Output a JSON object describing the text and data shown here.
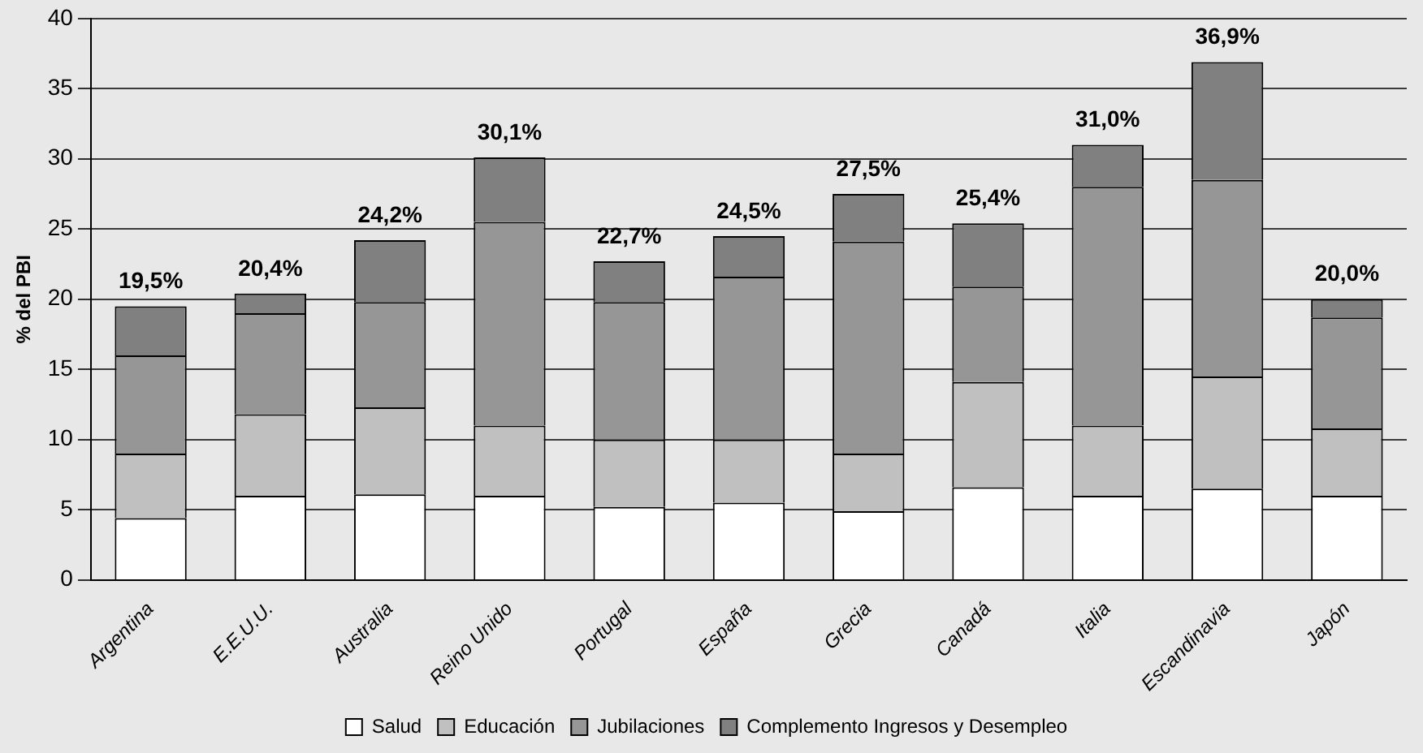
{
  "chart_data": {
    "type": "bar",
    "stacked": true,
    "ylabel": "% del PBI",
    "categories": [
      "Argentina",
      "E.E.U.U.",
      "Australia",
      "Reino Unido",
      "Portugal",
      "España",
      "Grecia",
      "Canadá",
      "Italia",
      "Escandinavia",
      "Japón"
    ],
    "series": [
      {
        "name": "Salud",
        "color": "#ffffff",
        "values": [
          4.4,
          6.0,
          6.1,
          6.0,
          5.2,
          5.5,
          4.9,
          6.6,
          6.0,
          6.5,
          6.0
        ]
      },
      {
        "name": "Educación",
        "color": "#c0c0c0",
        "values": [
          4.6,
          5.8,
          6.2,
          5.0,
          4.8,
          4.5,
          4.1,
          7.5,
          5.0,
          8.0,
          4.8
        ]
      },
      {
        "name": "Jubilaciones",
        "color": "#969696",
        "values": [
          7.0,
          7.2,
          7.5,
          14.5,
          9.8,
          11.6,
          15.1,
          6.8,
          17.0,
          14.0,
          7.9
        ]
      },
      {
        "name": "Complemento Ingresos y Desempleo",
        "color": "#808080",
        "values": [
          3.5,
          1.4,
          4.4,
          4.6,
          2.9,
          2.9,
          3.4,
          4.5,
          3.0,
          8.4,
          1.3
        ]
      }
    ],
    "totals": [
      "19,5%",
      "20,4%",
      "24,2%",
      "30,1%",
      "22,7%",
      "24,5%",
      "27,5%",
      "25,4%",
      "31,0%",
      "36,9%",
      "20,0%"
    ],
    "ylim": [
      0,
      40
    ],
    "yticks": [
      0,
      5,
      10,
      15,
      20,
      25,
      30,
      35,
      40
    ],
    "grid": "y",
    "legend": "bottom"
  }
}
